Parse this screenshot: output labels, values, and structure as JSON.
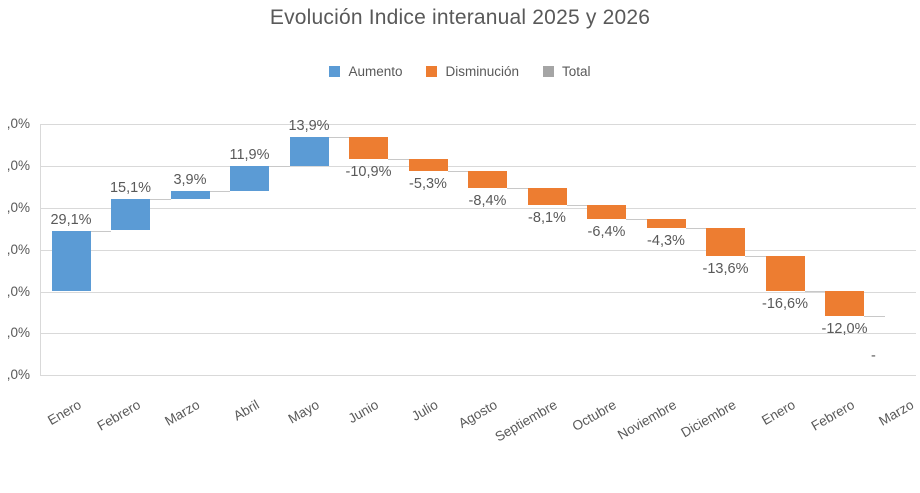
{
  "title": "Evolución Indice interanual 2025 y 2026",
  "legend": {
    "items": [
      {
        "label": "Aumento",
        "color": "#5B9BD5"
      },
      {
        "label": "Disminución",
        "color": "#ED7D31"
      },
      {
        "label": "Total",
        "color": "#A5A5A5"
      }
    ]
  },
  "chart_data": {
    "type": "bar",
    "subtype": "waterfall",
    "title": "Evolución Indice interanual 2025 y 2026",
    "xlabel": "",
    "ylabel": "",
    "grid": true,
    "legend_position": "top",
    "ylim": [
      -40,
      80
    ],
    "ytick_step": 20,
    "yticks": [
      {
        "value": 80,
        "label_visible": ",0%"
      },
      {
        "value": 60,
        "label_visible": ",0%"
      },
      {
        "value": 40,
        "label_visible": ",0%"
      },
      {
        "value": 20,
        "label_visible": ",0%"
      },
      {
        "value": 0,
        "label_visible": ",0%"
      },
      {
        "value": -20,
        "label_visible": ",0%"
      },
      {
        "value": -40,
        "label_visible": ",0%"
      }
    ],
    "note": "Waterfall chart cropped on left (y-axis labels truncated to ',0%') and on right (15th bar and its label mostly out of frame)",
    "points": [
      {
        "month": "Enero",
        "value": 29.1,
        "value_label": "29,1%",
        "series": "Aumento"
      },
      {
        "month": "Febrero",
        "value": 15.1,
        "value_label": "15,1%",
        "series": "Aumento"
      },
      {
        "month": "Marzo",
        "value": 3.9,
        "value_label": "3,9%",
        "series": "Aumento"
      },
      {
        "month": "Abril",
        "value": 11.9,
        "value_label": "11,9%",
        "series": "Aumento"
      },
      {
        "month": "Mayo",
        "value": 13.9,
        "value_label": "13,9%",
        "series": "Aumento"
      },
      {
        "month": "Junio",
        "value": -10.9,
        "value_label": "-10,9%",
        "series": "Disminución"
      },
      {
        "month": "Julio",
        "value": -5.3,
        "value_label": "-5,3%",
        "series": "Disminución"
      },
      {
        "month": "Agosto",
        "value": -8.4,
        "value_label": "-8,4%",
        "series": "Disminución"
      },
      {
        "month": "Septiembre",
        "value": -8.1,
        "value_label": "-8,1%",
        "series": "Disminución"
      },
      {
        "month": "Octubre",
        "value": -6.4,
        "value_label": "-6,4%",
        "series": "Disminución"
      },
      {
        "month": "Noviembre",
        "value": -4.3,
        "value_label": "-4,3%",
        "series": "Disminución"
      },
      {
        "month": "Diciembre",
        "value": -13.6,
        "value_label": "-13,6%",
        "series": "Disminución"
      },
      {
        "month": "Enero",
        "value": -16.6,
        "value_label": "-16,6%",
        "series": "Disminución"
      },
      {
        "month": "Febrero",
        "value": -12.0,
        "value_label": "-12,0%",
        "series": "Disminución"
      },
      {
        "month": "Marzo",
        "value": null,
        "value_label": "-",
        "series": "Disminución",
        "partial": true
      }
    ],
    "series_colors": {
      "Aumento": "#5B9BD5",
      "Disminución": "#ED7D31",
      "Total": "#A5A5A5"
    }
  },
  "colors": {
    "title_text": "#595959",
    "axis_text": "#595959",
    "gridline": "#D9D9D9",
    "connector": "#C8C8C8",
    "background": "#FFFFFF"
  }
}
